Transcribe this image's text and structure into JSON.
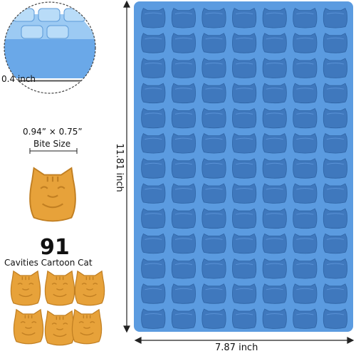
{
  "labels": {
    "depth": "0.4 inch",
    "size": "0.94” × 0.75”",
    "bite": "Bite Size",
    "count": "91",
    "cavities": "Cavities Cartoon Cat",
    "width": "7.87 inch",
    "height": "11.81 inch"
  },
  "mold": {
    "rows": 13,
    "columns": 7,
    "color": "#5b9be0",
    "cavity_color": "#3f78bd"
  },
  "candy": {
    "color": "#e7a23a",
    "shadow_color": "#c17f22"
  }
}
